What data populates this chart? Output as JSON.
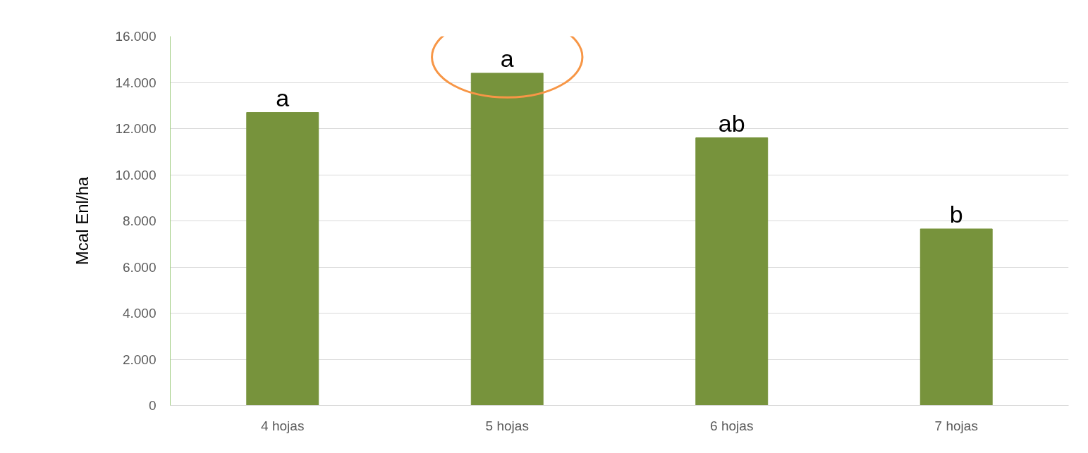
{
  "chart_data": {
    "type": "bar",
    "ylabel": "Mcal Enl/ha",
    "categories": [
      "4 hojas",
      "5 hojas",
      "6 hojas",
      "7 hojas"
    ],
    "values": [
      12700,
      14400,
      11600,
      7650
    ],
    "color": "#77933c",
    "ylim": [
      0,
      16000
    ],
    "yticks": [
      {
        "value": 0,
        "label": "0"
      },
      {
        "value": 2000,
        "label": "2.000"
      },
      {
        "value": 4000,
        "label": "4.000"
      },
      {
        "value": 6000,
        "label": "6.000"
      },
      {
        "value": 8000,
        "label": "8.000"
      },
      {
        "value": 10000,
        "label": "10.000"
      },
      {
        "value": 12000,
        "label": "12.000"
      },
      {
        "value": 14000,
        "label": "14.000"
      },
      {
        "value": 16000,
        "label": "16.000"
      }
    ],
    "grid": "y",
    "annotations": [
      {
        "text": "a",
        "x": "4 hojas",
        "y": 12700
      },
      {
        "text": "a",
        "x": "5 hojas",
        "y": 14400
      },
      {
        "text": "ab",
        "x": "6 hojas",
        "y": 11600
      },
      {
        "text": "b",
        "x": "7 hojas",
        "y": 7650
      }
    ]
  }
}
